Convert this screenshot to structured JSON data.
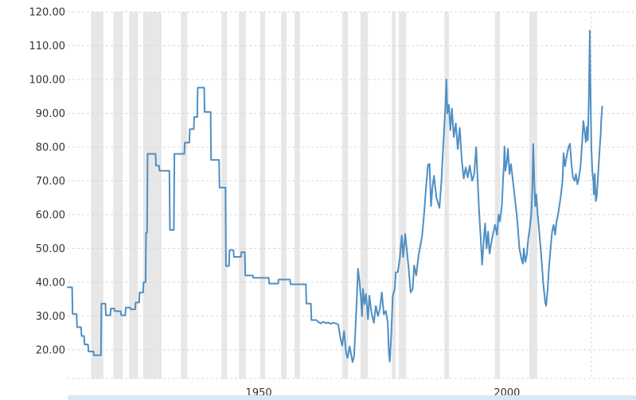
{
  "chart_data": {
    "type": "line",
    "title": "",
    "xlabel": "",
    "ylabel": "",
    "x_axis": {
      "range_years": [
        1911.5,
        2026.0
      ],
      "tick_labels": [
        "1950",
        "2000"
      ],
      "tick_years": [
        1950,
        2000
      ],
      "gridlines": "none"
    },
    "y_axis": {
      "range": [
        11.5,
        120.0
      ],
      "tick_values": [
        120,
        110,
        100,
        90,
        80,
        70,
        60,
        50,
        40,
        30,
        20
      ],
      "tick_labels": [
        "120.00",
        "110.00",
        "100.00",
        "90.00",
        "80.00",
        "70.00",
        "60.00",
        "50.00",
        "40.00",
        "30.00",
        "20.00"
      ],
      "gridlines": "dashed"
    },
    "legend": "none",
    "colors": {
      "line": "#4e8fc4",
      "recession_band": "#e7e7e7",
      "gridline": "#d8d8d8",
      "tick_text": "#333333",
      "range_bar": "#d7e8f7",
      "background": "#ffffff"
    },
    "dashed_vline_year": 2017.0,
    "recession_bands_years": [
      [
        1916.2,
        1918.7
      ],
      [
        1920.7,
        1922.6
      ],
      [
        1923.9,
        1925.7
      ],
      [
        1926.7,
        1930.4
      ],
      [
        1934.3,
        1935.6
      ],
      [
        1942.5,
        1943.6
      ],
      [
        1946.0,
        1947.4
      ],
      [
        1950.3,
        1951.3
      ],
      [
        1954.5,
        1955.6
      ],
      [
        1957.2,
        1958.3
      ],
      [
        1966.8,
        1968.0
      ],
      [
        1970.5,
        1972.0
      ],
      [
        1976.8,
        1977.6
      ],
      [
        1978.2,
        1979.7
      ],
      [
        1987.4,
        1988.3
      ],
      [
        1997.6,
        1998.6
      ],
      [
        2004.5,
        2006.1
      ]
    ],
    "series": [
      {
        "name": "price",
        "points": [
          [
            1911.5,
            38.5
          ],
          [
            1912.4,
            38.5
          ],
          [
            1912.5,
            30.6
          ],
          [
            1913.3,
            30.6
          ],
          [
            1913.4,
            26.7
          ],
          [
            1914.2,
            26.7
          ],
          [
            1914.3,
            24.1
          ],
          [
            1914.8,
            24.1
          ],
          [
            1914.9,
            21.6
          ],
          [
            1915.6,
            21.6
          ],
          [
            1915.7,
            19.5
          ],
          [
            1916.7,
            19.5
          ],
          [
            1916.8,
            18.4
          ],
          [
            1918.2,
            18.4
          ],
          [
            1918.3,
            33.7
          ],
          [
            1919.1,
            33.7
          ],
          [
            1919.2,
            30.2
          ],
          [
            1920.1,
            30.2
          ],
          [
            1920.2,
            32.2
          ],
          [
            1920.9,
            32.2
          ],
          [
            1921.0,
            31.4
          ],
          [
            1922.2,
            31.4
          ],
          [
            1922.3,
            30.2
          ],
          [
            1923.1,
            30.2
          ],
          [
            1923.2,
            32.5
          ],
          [
            1924.1,
            32.5
          ],
          [
            1924.2,
            32.0
          ],
          [
            1925.1,
            32.0
          ],
          [
            1925.2,
            34.0
          ],
          [
            1925.9,
            34.0
          ],
          [
            1926.0,
            37.0
          ],
          [
            1926.7,
            37.0
          ],
          [
            1926.8,
            40.0
          ],
          [
            1927.2,
            40.0
          ],
          [
            1927.3,
            54.7
          ],
          [
            1927.5,
            54.7
          ],
          [
            1927.6,
            78.0
          ],
          [
            1929.2,
            78.0
          ],
          [
            1929.3,
            74.5
          ],
          [
            1929.9,
            74.5
          ],
          [
            1930.0,
            73.0
          ],
          [
            1932.0,
            73.0
          ],
          [
            1932.1,
            55.5
          ],
          [
            1932.9,
            55.5
          ],
          [
            1933.0,
            78.0
          ],
          [
            1935.0,
            78.0
          ],
          [
            1935.1,
            81.3
          ],
          [
            1936.0,
            81.3
          ],
          [
            1936.1,
            85.3
          ],
          [
            1936.9,
            85.3
          ],
          [
            1937.0,
            88.9
          ],
          [
            1937.6,
            88.9
          ],
          [
            1937.7,
            97.6
          ],
          [
            1939.0,
            97.6
          ],
          [
            1939.1,
            90.4
          ],
          [
            1940.3,
            90.4
          ],
          [
            1940.4,
            76.2
          ],
          [
            1942.0,
            76.2
          ],
          [
            1942.1,
            68.0
          ],
          [
            1943.3,
            68.0
          ],
          [
            1943.4,
            44.8
          ],
          [
            1944.0,
            44.8
          ],
          [
            1944.1,
            49.5
          ],
          [
            1944.9,
            49.5
          ],
          [
            1945.0,
            47.5
          ],
          [
            1946.4,
            47.5
          ],
          [
            1946.5,
            48.9
          ],
          [
            1947.2,
            48.9
          ],
          [
            1947.3,
            42.0
          ],
          [
            1948.8,
            42.0
          ],
          [
            1948.9,
            41.3
          ],
          [
            1952.0,
            41.3
          ],
          [
            1952.1,
            39.6
          ],
          [
            1953.9,
            39.6
          ],
          [
            1954.0,
            40.8
          ],
          [
            1956.3,
            40.8
          ],
          [
            1956.4,
            39.4
          ],
          [
            1959.5,
            39.4
          ],
          [
            1959.6,
            33.7
          ],
          [
            1960.5,
            33.7
          ],
          [
            1960.6,
            28.8
          ],
          [
            1961.6,
            28.8
          ],
          [
            1962.0,
            28.2
          ],
          [
            1962.5,
            27.8
          ],
          [
            1963.0,
            28.3
          ],
          [
            1963.5,
            27.9
          ],
          [
            1964.0,
            28.1
          ],
          [
            1964.5,
            27.7
          ],
          [
            1965.0,
            28.0
          ],
          [
            1965.5,
            27.8
          ],
          [
            1966.0,
            27.5
          ],
          [
            1966.4,
            24.0
          ],
          [
            1966.8,
            21.2
          ],
          [
            1967.2,
            25.5
          ],
          [
            1967.6,
            19.0
          ],
          [
            1967.9,
            17.6
          ],
          [
            1968.3,
            21.0
          ],
          [
            1968.9,
            16.4
          ],
          [
            1969.2,
            18.0
          ],
          [
            1969.4,
            24.0
          ],
          [
            1969.7,
            33.0
          ],
          [
            1970.0,
            44.0
          ],
          [
            1970.3,
            40.0
          ],
          [
            1970.6,
            35.0
          ],
          [
            1970.8,
            30.0
          ],
          [
            1971.0,
            38.0
          ],
          [
            1971.3,
            33.5
          ],
          [
            1971.6,
            36.5
          ],
          [
            1972.0,
            29.0
          ],
          [
            1972.3,
            36.0
          ],
          [
            1972.7,
            31.0
          ],
          [
            1973.2,
            28.0
          ],
          [
            1973.6,
            33.0
          ],
          [
            1974.0,
            30.0
          ],
          [
            1974.4,
            32.0
          ],
          [
            1974.8,
            37.0
          ],
          [
            1975.2,
            30.5
          ],
          [
            1975.6,
            31.5
          ],
          [
            1976.0,
            28.0
          ],
          [
            1976.2,
            19.3
          ],
          [
            1976.4,
            16.5
          ],
          [
            1976.7,
            25.0
          ],
          [
            1977.0,
            36.0
          ],
          [
            1977.4,
            38.0
          ],
          [
            1977.6,
            42.9
          ],
          [
            1978.0,
            43.0
          ],
          [
            1978.4,
            47.0
          ],
          [
            1978.8,
            53.8
          ],
          [
            1979.1,
            47.5
          ],
          [
            1979.5,
            54.3
          ],
          [
            1979.8,
            50.0
          ],
          [
            1980.2,
            44.0
          ],
          [
            1980.6,
            37.0
          ],
          [
            1981.0,
            38.0
          ],
          [
            1981.3,
            45.0
          ],
          [
            1981.7,
            42.0
          ],
          [
            1982.2,
            48.0
          ],
          [
            1982.9,
            53.5
          ],
          [
            1983.3,
            60.0
          ],
          [
            1983.7,
            68.0
          ],
          [
            1984.1,
            74.8
          ],
          [
            1984.4,
            75.0
          ],
          [
            1984.7,
            62.5
          ],
          [
            1985.0,
            68.0
          ],
          [
            1985.3,
            71.5
          ],
          [
            1985.8,
            65.0
          ],
          [
            1986.4,
            62.0
          ],
          [
            1986.8,
            70.0
          ],
          [
            1987.2,
            81.5
          ],
          [
            1987.6,
            92.0
          ],
          [
            1987.8,
            100.0
          ],
          [
            1988.0,
            90.0
          ],
          [
            1988.3,
            92.5
          ],
          [
            1988.6,
            85.0
          ],
          [
            1988.9,
            91.4
          ],
          [
            1989.3,
            83.0
          ],
          [
            1989.7,
            87.0
          ],
          [
            1990.1,
            79.4
          ],
          [
            1990.5,
            85.7
          ],
          [
            1990.9,
            76.1
          ],
          [
            1991.3,
            70.7
          ],
          [
            1991.7,
            74.0
          ],
          [
            1992.1,
            71.0
          ],
          [
            1992.5,
            74.5
          ],
          [
            1993.0,
            70.0
          ],
          [
            1993.4,
            72.0
          ],
          [
            1993.8,
            80.0
          ],
          [
            1994.1,
            70.0
          ],
          [
            1994.4,
            61.0
          ],
          [
            1994.7,
            53.5
          ],
          [
            1995.0,
            45.2
          ],
          [
            1995.3,
            52.0
          ],
          [
            1995.6,
            57.4
          ],
          [
            1995.9,
            50.0
          ],
          [
            1996.2,
            55.0
          ],
          [
            1996.5,
            48.5
          ],
          [
            1996.9,
            52.0
          ],
          [
            1997.3,
            55.0
          ],
          [
            1997.6,
            57.0
          ],
          [
            1998.0,
            54.0
          ],
          [
            1998.3,
            60.0
          ],
          [
            1998.6,
            58.0
          ],
          [
            1999.0,
            63.0
          ],
          [
            1999.2,
            70.0
          ],
          [
            1999.4,
            75.0
          ],
          [
            1999.5,
            80.2
          ],
          [
            1999.7,
            73.0
          ],
          [
            2000.0,
            76.0
          ],
          [
            2000.2,
            79.5
          ],
          [
            2000.5,
            72.0
          ],
          [
            2000.8,
            75.0
          ],
          [
            2001.2,
            70.0
          ],
          [
            2001.6,
            65.0
          ],
          [
            2002.1,
            58.0
          ],
          [
            2002.5,
            50.0
          ],
          [
            2002.9,
            47.0
          ],
          [
            2003.2,
            45.5
          ],
          [
            2003.4,
            50.0
          ],
          [
            2003.7,
            46.0
          ],
          [
            2004.0,
            48.0
          ],
          [
            2004.3,
            53.0
          ],
          [
            2004.6,
            56.0
          ],
          [
            2004.9,
            60.0
          ],
          [
            2005.1,
            67.0
          ],
          [
            2005.3,
            80.9
          ],
          [
            2005.5,
            70.0
          ],
          [
            2005.7,
            62.5
          ],
          [
            2005.9,
            66.0
          ],
          [
            2006.2,
            60.0
          ],
          [
            2006.5,
            55.0
          ],
          [
            2006.9,
            48.0
          ],
          [
            2007.3,
            40.0
          ],
          [
            2007.7,
            34.0
          ],
          [
            2007.9,
            33.0
          ],
          [
            2008.2,
            38.0
          ],
          [
            2008.5,
            45.0
          ],
          [
            2008.8,
            50.0
          ],
          [
            2009.1,
            55.0
          ],
          [
            2009.4,
            57.0
          ],
          [
            2009.7,
            54.0
          ],
          [
            2010.0,
            58.0
          ],
          [
            2010.3,
            60.0
          ],
          [
            2010.6,
            63.0
          ],
          [
            2010.9,
            66.0
          ],
          [
            2011.2,
            70.0
          ],
          [
            2011.4,
            78.2
          ],
          [
            2011.7,
            74.3
          ],
          [
            2012.0,
            77.0
          ],
          [
            2012.4,
            80.0
          ],
          [
            2012.7,
            81.0
          ],
          [
            2013.0,
            75.0
          ],
          [
            2013.3,
            71.0
          ],
          [
            2013.6,
            70.0
          ],
          [
            2013.9,
            72.0
          ],
          [
            2014.2,
            69.0
          ],
          [
            2014.5,
            71.0
          ],
          [
            2014.8,
            74.0
          ],
          [
            2015.1,
            80.0
          ],
          [
            2015.4,
            87.7
          ],
          [
            2015.7,
            84.0
          ],
          [
            2015.9,
            81.5
          ],
          [
            2016.1,
            86.0
          ],
          [
            2016.3,
            82.0
          ],
          [
            2016.5,
            95.0
          ],
          [
            2016.7,
            114.5
          ],
          [
            2016.8,
            100.0
          ],
          [
            2017.0,
            80.0
          ],
          [
            2017.2,
            73.0
          ],
          [
            2017.4,
            70.0
          ],
          [
            2017.5,
            66.0
          ],
          [
            2017.7,
            72.0
          ],
          [
            2017.9,
            64.0
          ],
          [
            2018.1,
            65.5
          ],
          [
            2018.3,
            70.0
          ],
          [
            2018.5,
            75.0
          ],
          [
            2018.7,
            80.0
          ],
          [
            2018.9,
            84.0
          ],
          [
            2019.0,
            88.0
          ],
          [
            2019.2,
            92.0
          ]
        ]
      }
    ]
  }
}
